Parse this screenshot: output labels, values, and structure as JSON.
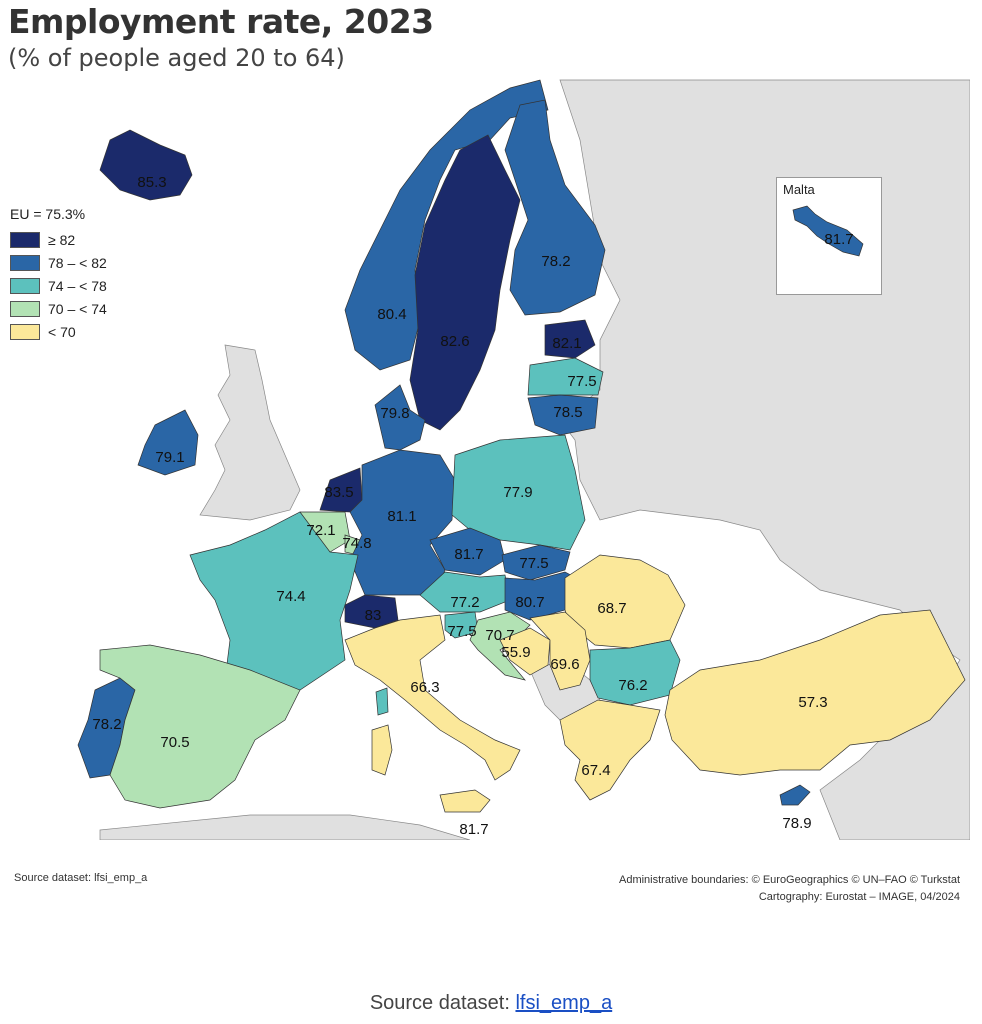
{
  "header": {
    "title": "Employment rate, 2023",
    "subtitle": "(% of people aged 20 to 64)"
  },
  "legend": {
    "eu_label": "EU = 75.3%",
    "classes": [
      {
        "label": "≥ 82",
        "color": "#1b2a6b"
      },
      {
        "label": "78 – < 82",
        "color": "#2a66a6"
      },
      {
        "label": "74 – < 78",
        "color": "#5cc1bd"
      },
      {
        "label": "70 – < 74",
        "color": "#b2e2b4"
      },
      {
        "label": "< 70",
        "color": "#fbe89a"
      }
    ]
  },
  "inset": {
    "title": "Malta",
    "value": "81.7"
  },
  "regions": [
    {
      "name": "iceland",
      "value": "85.3"
    },
    {
      "name": "norway",
      "value": "80.4"
    },
    {
      "name": "sweden",
      "value": "82.6"
    },
    {
      "name": "finland",
      "value": "78.2"
    },
    {
      "name": "estonia",
      "value": "82.1"
    },
    {
      "name": "latvia",
      "value": "77.5"
    },
    {
      "name": "lithuania",
      "value": "78.5"
    },
    {
      "name": "denmark",
      "value": "79.8"
    },
    {
      "name": "ireland",
      "value": "79.1"
    },
    {
      "name": "netherlands",
      "value": "83.5"
    },
    {
      "name": "belgium",
      "value": "72.1"
    },
    {
      "name": "luxembourg",
      "value": "74.8"
    },
    {
      "name": "germany",
      "value": "81.1"
    },
    {
      "name": "poland",
      "value": "77.9"
    },
    {
      "name": "czechia",
      "value": "81.7"
    },
    {
      "name": "slovakia",
      "value": "77.5"
    },
    {
      "name": "france",
      "value": "74.4"
    },
    {
      "name": "switzerland",
      "value": "83"
    },
    {
      "name": "austria",
      "value": "77.2"
    },
    {
      "name": "hungary",
      "value": "80.7"
    },
    {
      "name": "romania",
      "value": "68.7"
    },
    {
      "name": "slovenia",
      "value": "77.5"
    },
    {
      "name": "croatia",
      "value": "70.7"
    },
    {
      "name": "bosnia",
      "value": "55.9"
    },
    {
      "name": "serbia",
      "value": "69.6"
    },
    {
      "name": "bulgaria",
      "value": "76.2"
    },
    {
      "name": "italy",
      "value": "66.3"
    },
    {
      "name": "portugal",
      "value": "78.2"
    },
    {
      "name": "spain",
      "value": "70.5"
    },
    {
      "name": "turkiye",
      "value": "57.3"
    },
    {
      "name": "greece",
      "value": "67.4"
    },
    {
      "name": "cyprus",
      "value": "78.9"
    },
    {
      "name": "sicily-label",
      "value": "81.7"
    }
  ],
  "footer": {
    "source_left": "Source dataset: lfsi_emp_a",
    "credits_line1": "Administrative boundaries: © EuroGeographics © UN–FAO © Turkstat",
    "credits_line2": "Cartography: Eurostat – IMAGE, 04/2024",
    "source_bottom_prefix": "Source dataset: ",
    "source_bottom_link": "lfsi_emp_a"
  }
}
